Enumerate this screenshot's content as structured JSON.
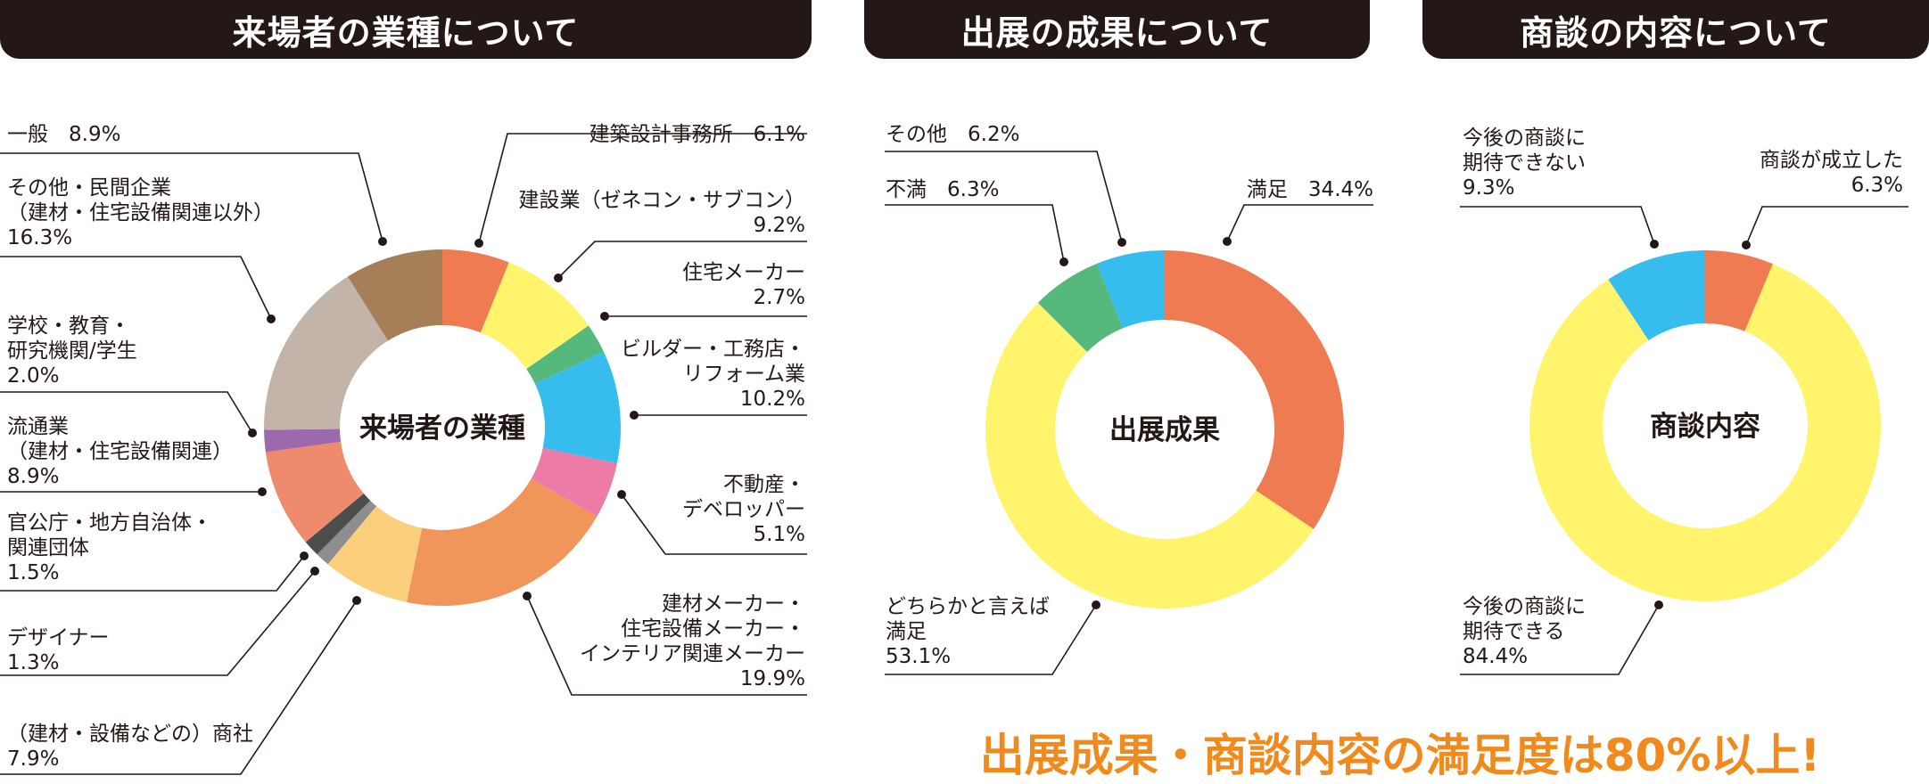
{
  "headers": {
    "visitors": "来場者の業種について",
    "results": "出展の成果について",
    "negotiation": "商談の内容について"
  },
  "footer": "出展成果・商談内容の満足度は80%以上!",
  "colors": {
    "orange": "#ef7b52",
    "yellow": "#fff46b",
    "green": "#55b87d",
    "blue": "#36bdee",
    "pink": "#ec7ba7",
    "light_orange": "#f1965a",
    "peach": "#fbcf7b",
    "gray": "#8e8e8e",
    "dark_gray": "#4d4d4d",
    "salmon": "#ef8b6d",
    "purple": "#9b69ac",
    "taupe": "#c2b4a8",
    "brown": "#a67f59"
  },
  "chart_data": [
    {
      "type": "pie",
      "center_label": "来場者の業種",
      "slices": [
        {
          "label": [
            "建築設計事務所　6.1%"
          ],
          "value": 6.1,
          "color": "#ef7b52"
        },
        {
          "label": [
            "建設業（ゼネコン・サブコン）",
            "9.2%"
          ],
          "value": 9.2,
          "color": "#fff46b"
        },
        {
          "label": [
            "住宅メーカー",
            "2.7%"
          ],
          "value": 2.7,
          "color": "#55b87d"
        },
        {
          "label": [
            "ビルダー・工務店・",
            "リフォーム業",
            "10.2%"
          ],
          "value": 10.2,
          "color": "#36bdee"
        },
        {
          "label": [
            "不動産・",
            "デベロッパー",
            "5.1%"
          ],
          "value": 5.1,
          "color": "#ec7ba7"
        },
        {
          "label": [
            "建材メーカー・",
            "住宅設備メーカー・",
            "インテリア関連メーカー",
            "19.9%"
          ],
          "value": 19.9,
          "color": "#f1965a"
        },
        {
          "label": [
            "（建材・設備などの）商社",
            "7.9%"
          ],
          "value": 7.9,
          "color": "#fbcf7b"
        },
        {
          "label": [
            "デザイナー",
            "1.3%"
          ],
          "value": 1.3,
          "color": "#8e8e8e"
        },
        {
          "label": [
            "官公庁・地方自治体・",
            "関連団体",
            "1.5%"
          ],
          "value": 1.5,
          "color": "#4d4d4d"
        },
        {
          "label": [
            "流通業",
            "（建材・住宅設備関連）",
            "8.9%"
          ],
          "value": 8.9,
          "color": "#ef8b6d"
        },
        {
          "label": [
            "学校・教育・",
            "研究機関/学生",
            "2.0%"
          ],
          "value": 2.0,
          "color": "#9b69ac"
        },
        {
          "label": [
            "その他・民間企業",
            "（建材・住宅設備関連以外）",
            "16.3%"
          ],
          "value": 16.3,
          "color": "#c2b4a8"
        },
        {
          "label": [
            "一般　8.9%"
          ],
          "value": 8.9,
          "color": "#a67f59"
        }
      ]
    },
    {
      "type": "pie",
      "center_label": "出展成果",
      "slices": [
        {
          "label": [
            "満足　34.4%"
          ],
          "value": 34.4,
          "color": "#ef7b52"
        },
        {
          "label": [
            "どちらかと言えば",
            "満足",
            "53.1%"
          ],
          "value": 53.1,
          "color": "#fff46b"
        },
        {
          "label": [
            "不満　6.3%"
          ],
          "value": 6.3,
          "color": "#55b87d"
        },
        {
          "label": [
            "その他　6.2%"
          ],
          "value": 6.2,
          "color": "#36bdee"
        }
      ]
    },
    {
      "type": "pie",
      "center_label": "商談内容",
      "slices": [
        {
          "label": [
            "商談が成立した",
            "6.3%"
          ],
          "value": 6.3,
          "color": "#ef7b52"
        },
        {
          "label": [
            "今後の商談に",
            "期待できる",
            "84.4%"
          ],
          "value": 84.4,
          "color": "#fff46b"
        },
        {
          "label": [
            "今後の商談に",
            "期待できない",
            "9.3%"
          ],
          "value": 9.3,
          "color": "#36bdee"
        }
      ]
    }
  ]
}
